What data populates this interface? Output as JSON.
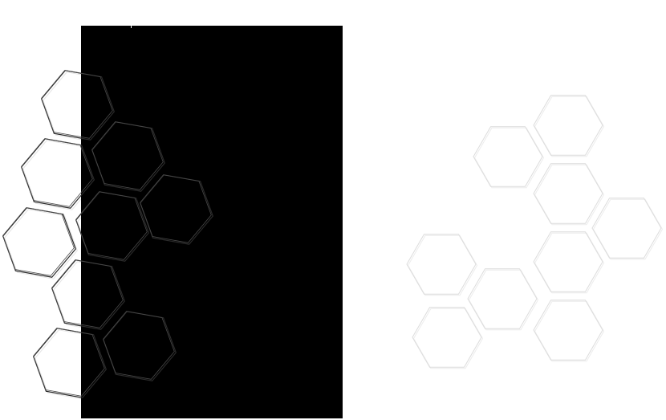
{
  "canvas": {
    "background_color": "#ffffff",
    "panel_color": "#000000",
    "hex_stroke_on_white": "#dcdcdc",
    "hex_stroke_on_black": "#2a2a2a"
  },
  "decoration": {
    "pattern": "hexagon-outline",
    "left_cluster_count": 10,
    "right_cluster_count": 10
  }
}
